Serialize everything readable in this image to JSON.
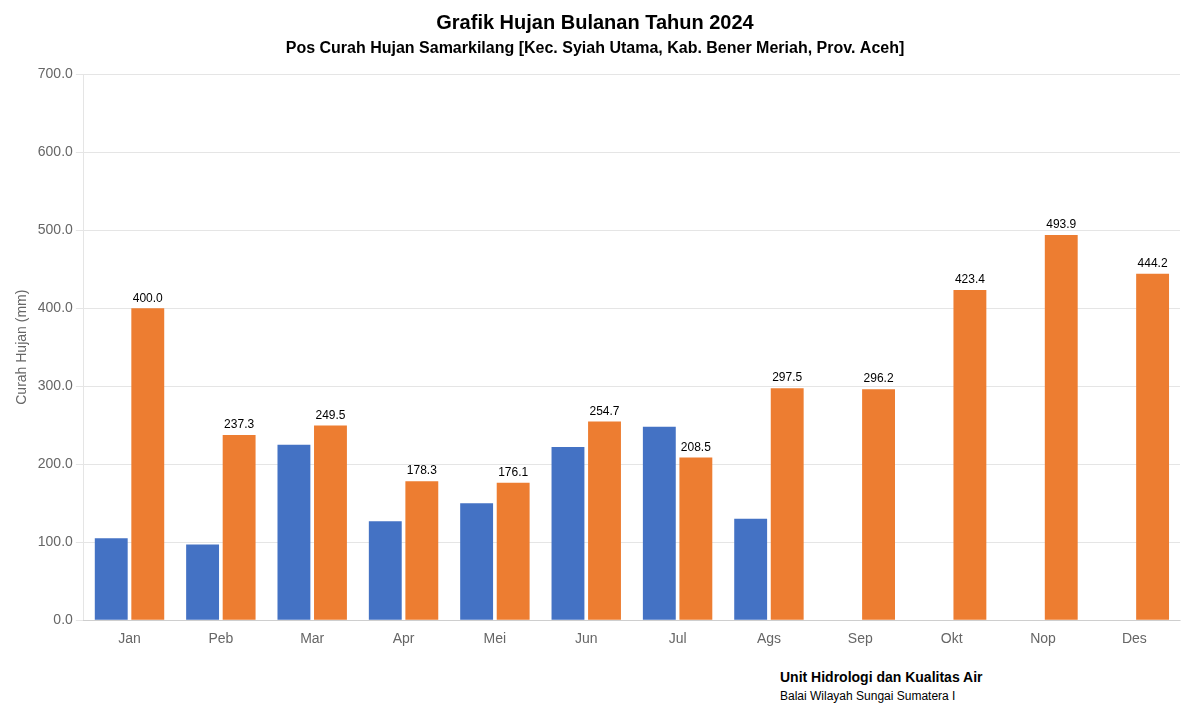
{
  "chart_data": {
    "type": "bar",
    "title": "Grafik Hujan Bulanan Tahun 2024",
    "subtitle": "Pos Curah Hujan Samarkilang [Kec. Syiah Utama, Kab. Bener Meriah, Prov. Aceh]",
    "y_label": "Curah Hujan (mm)",
    "categories": [
      "Jan",
      "Peb",
      "Mar",
      "Apr",
      "Mei",
      "Jun",
      "Jul",
      "Ags",
      "Sep",
      "Okt",
      "Nop",
      "Des"
    ],
    "series": [
      {
        "color": "#4472C4",
        "values": [
          105.0,
          97.0,
          225.0,
          127.0,
          150.0,
          222.0,
          248.0,
          130.0,
          0.0,
          0.0,
          0.0,
          0.0
        ]
      },
      {
        "color": "#ED7D31",
        "values": [
          400.0,
          237.3,
          249.5,
          178.3,
          176.1,
          254.7,
          208.5,
          297.5,
          296.2,
          423.4,
          493.9,
          444.2
        ],
        "data_labels": true,
        "value_labels": [
          "400.0",
          "237.3",
          "249.5",
          "178.3",
          "176.1",
          "254.7",
          "208.5",
          "297.5",
          "296.2",
          "423.4",
          "493.9",
          "444.2"
        ]
      }
    ],
    "ylim": [
      0,
      700
    ],
    "yticks": [
      {
        "value": 0,
        "label": "0.0"
      },
      {
        "value": 100,
        "label": "100.0"
      },
      {
        "value": 200,
        "label": "200.0"
      },
      {
        "value": 300,
        "label": "300.0"
      },
      {
        "value": 400,
        "label": "400.0"
      },
      {
        "value": 500,
        "label": "500.0"
      },
      {
        "value": 600,
        "label": "600.0"
      },
      {
        "value": 700,
        "label": "700.0"
      }
    ],
    "grid": true,
    "annotations": [
      "Unit Hidrologi dan Kualitas Air",
      "Balai Wilayah Sungai Sumatera I"
    ]
  }
}
